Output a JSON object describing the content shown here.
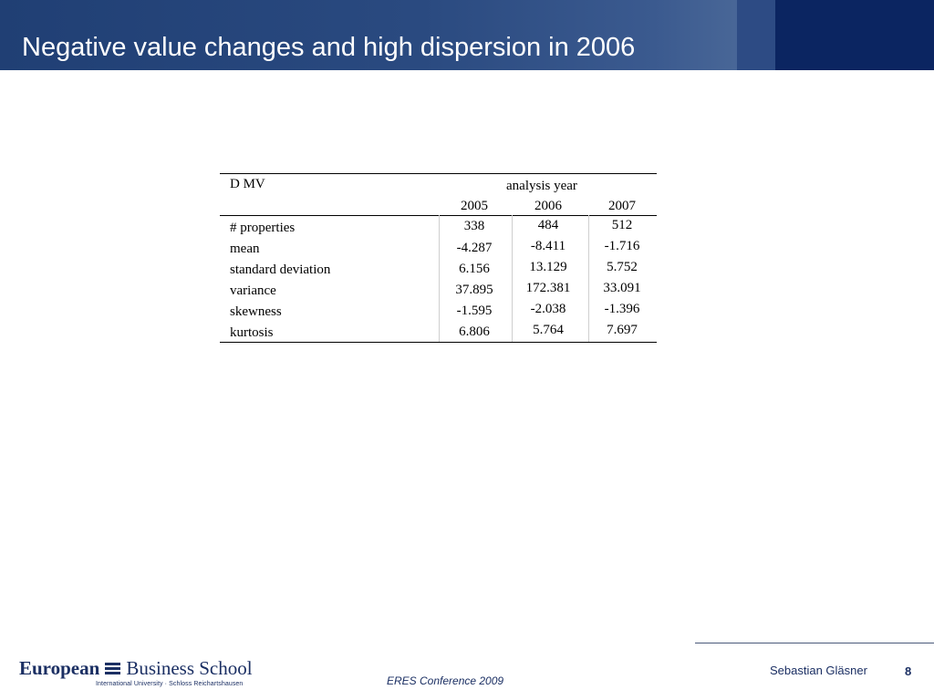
{
  "slide": {
    "title": "Negative value changes and high dispersion in 2006"
  },
  "table": {
    "corner_label": "D MV",
    "group_header": "analysis year",
    "years": [
      "2005",
      "2006",
      "2007"
    ],
    "rows": [
      {
        "label": "# properties",
        "values": [
          "338",
          "484",
          "512"
        ]
      },
      {
        "label": "mean",
        "values": [
          "-4.287",
          "-8.411",
          "-1.716"
        ]
      },
      {
        "label": "standard deviation",
        "values": [
          "6.156",
          "13.129",
          "5.752"
        ]
      },
      {
        "label": "variance",
        "values": [
          "37.895",
          "172.381",
          "33.091"
        ]
      },
      {
        "label": "skewness",
        "values": [
          "-1.595",
          "-2.038",
          "-1.396"
        ]
      },
      {
        "label": "kurtosis",
        "values": [
          "6.806",
          "5.764",
          "7.697"
        ]
      }
    ]
  },
  "footer": {
    "logo_main_1": "European",
    "logo_main_2": "Business School",
    "logo_sub": "International University · Schloss Reichartshausen",
    "conference": "ERES Conference 2009",
    "author": "Sebastian Gläsner",
    "page_number": "8"
  }
}
